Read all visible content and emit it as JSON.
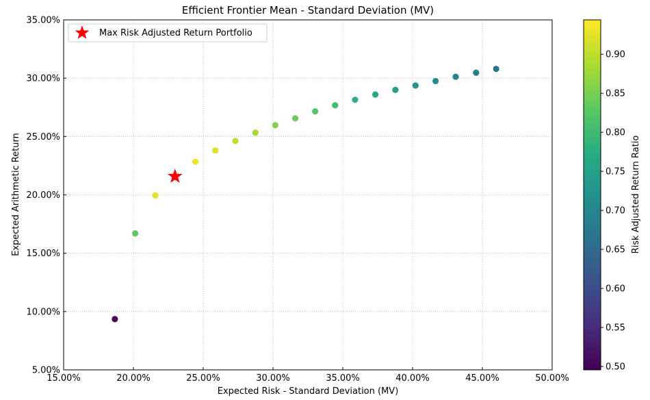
{
  "chart_data": {
    "type": "scatter",
    "title": "Efficient Frontier Mean - Standard Deviation (MV)",
    "xlabel": "Expected Risk - Standard Deviation (MV)",
    "ylabel": "Expected Arithmetic Return",
    "xlim": [
      0.15,
      0.5
    ],
    "ylim": [
      0.05,
      0.35
    ],
    "x_ticks": [
      0.15,
      0.2,
      0.25,
      0.3,
      0.35,
      0.4,
      0.45,
      0.5
    ],
    "x_tick_labels": [
      "15.00%",
      "20.00%",
      "25.00%",
      "30.00%",
      "35.00%",
      "40.00%",
      "45.00%",
      "50.00%"
    ],
    "y_ticks": [
      0.05,
      0.1,
      0.15,
      0.2,
      0.25,
      0.3,
      0.35
    ],
    "y_tick_labels": [
      "5.00%",
      "10.00%",
      "15.00%",
      "20.00%",
      "25.00%",
      "30.00%",
      "35.00%"
    ],
    "grid": true,
    "legend": {
      "placement": "top-left",
      "entries": [
        "Max Risk Adjusted Return Portfolio"
      ]
    },
    "colorbar": {
      "label": "Risk Adjusted Return Ratio",
      "colormap": "viridis",
      "range": [
        0.4957,
        0.944
      ],
      "ticks": [
        0.5,
        0.55,
        0.6,
        0.65,
        0.7,
        0.75,
        0.8,
        0.85,
        0.9
      ],
      "tick_labels": [
        "0.50",
        "0.55",
        "0.60",
        "0.65",
        "0.70",
        "0.75",
        "0.80",
        "0.85",
        "0.90"
      ]
    },
    "series": [
      {
        "x": [
          0.1867,
          0.2013,
          0.2157,
          0.2444,
          0.2587,
          0.273,
          0.2874,
          0.3016,
          0.3159,
          0.3302,
          0.3445,
          0.3588,
          0.3733,
          0.3877,
          0.4021,
          0.4165,
          0.4309,
          0.4455,
          0.4599
        ],
        "y": [
          0.0935,
          0.167,
          0.1995,
          0.2284,
          0.238,
          0.2462,
          0.2533,
          0.2597,
          0.2656,
          0.2716,
          0.2768,
          0.2815,
          0.286,
          0.29,
          0.2937,
          0.2975,
          0.3012,
          0.3047,
          0.308
        ],
        "ratio": [
          0.5,
          0.83,
          0.925,
          0.934,
          0.921,
          0.902,
          0.881,
          0.861,
          0.841,
          0.822,
          0.803,
          0.785,
          0.766,
          0.748,
          0.73,
          0.714,
          0.699,
          0.684,
          0.67
        ]
      },
      {
        "name": "Max Risk Adjusted Return Portfolio",
        "marker": "star",
        "color": "#ff0000",
        "x": [
          0.2298
        ],
        "y": [
          0.2158
        ]
      }
    ]
  }
}
